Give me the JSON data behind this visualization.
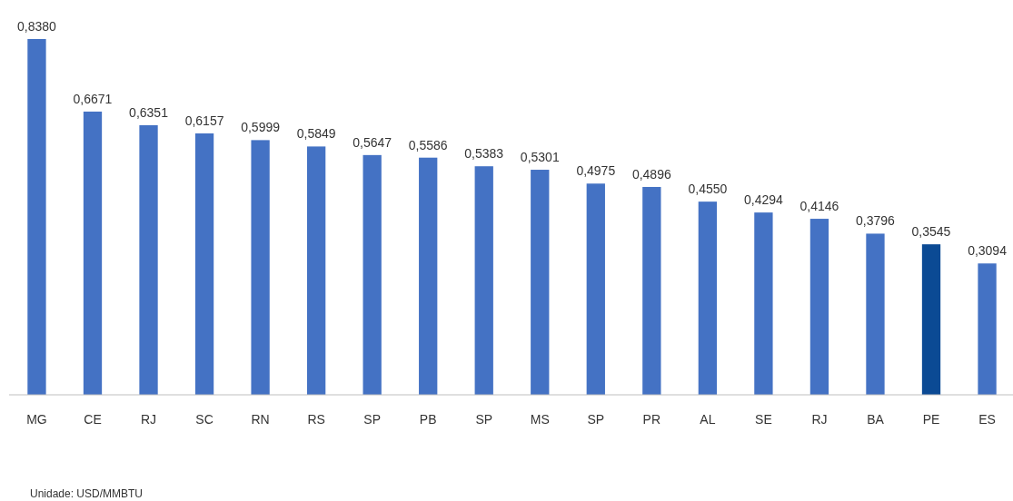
{
  "chart_data": {
    "type": "bar",
    "categories": [
      "MG",
      "CE",
      "RJ",
      "SC",
      "RN",
      "RS",
      "SP",
      "PB",
      "SP",
      "MS",
      "SP",
      "PR",
      "AL",
      "SE",
      "RJ",
      "BA",
      "PE",
      "ES"
    ],
    "values": [
      0.838,
      0.6671,
      0.6351,
      0.6157,
      0.5999,
      0.5849,
      0.5647,
      0.5586,
      0.5383,
      0.5301,
      0.4975,
      0.4896,
      0.455,
      0.4294,
      0.4146,
      0.3796,
      0.3545,
      0.3094
    ],
    "value_labels": [
      "0,8380",
      "0,6671",
      "0,6351",
      "0,6157",
      "0,5999",
      "0,5849",
      "0,5647",
      "0,5586",
      "0,5383",
      "0,5301",
      "0,4975",
      "0,4896",
      "0,4550",
      "0,4294",
      "0,4146",
      "0,3796",
      "0,3545",
      "0,3094"
    ],
    "colors": [
      "#4472c4",
      "#4472c4",
      "#4472c4",
      "#4472c4",
      "#4472c4",
      "#4472c4",
      "#4472c4",
      "#4472c4",
      "#4472c4",
      "#4472c4",
      "#4472c4",
      "#4472c4",
      "#4472c4",
      "#4472c4",
      "#4472c4",
      "#4472c4",
      "#0b4a94",
      "#4472c4"
    ],
    "annotations": [
      "Unidade: USD/MMBTU"
    ]
  }
}
